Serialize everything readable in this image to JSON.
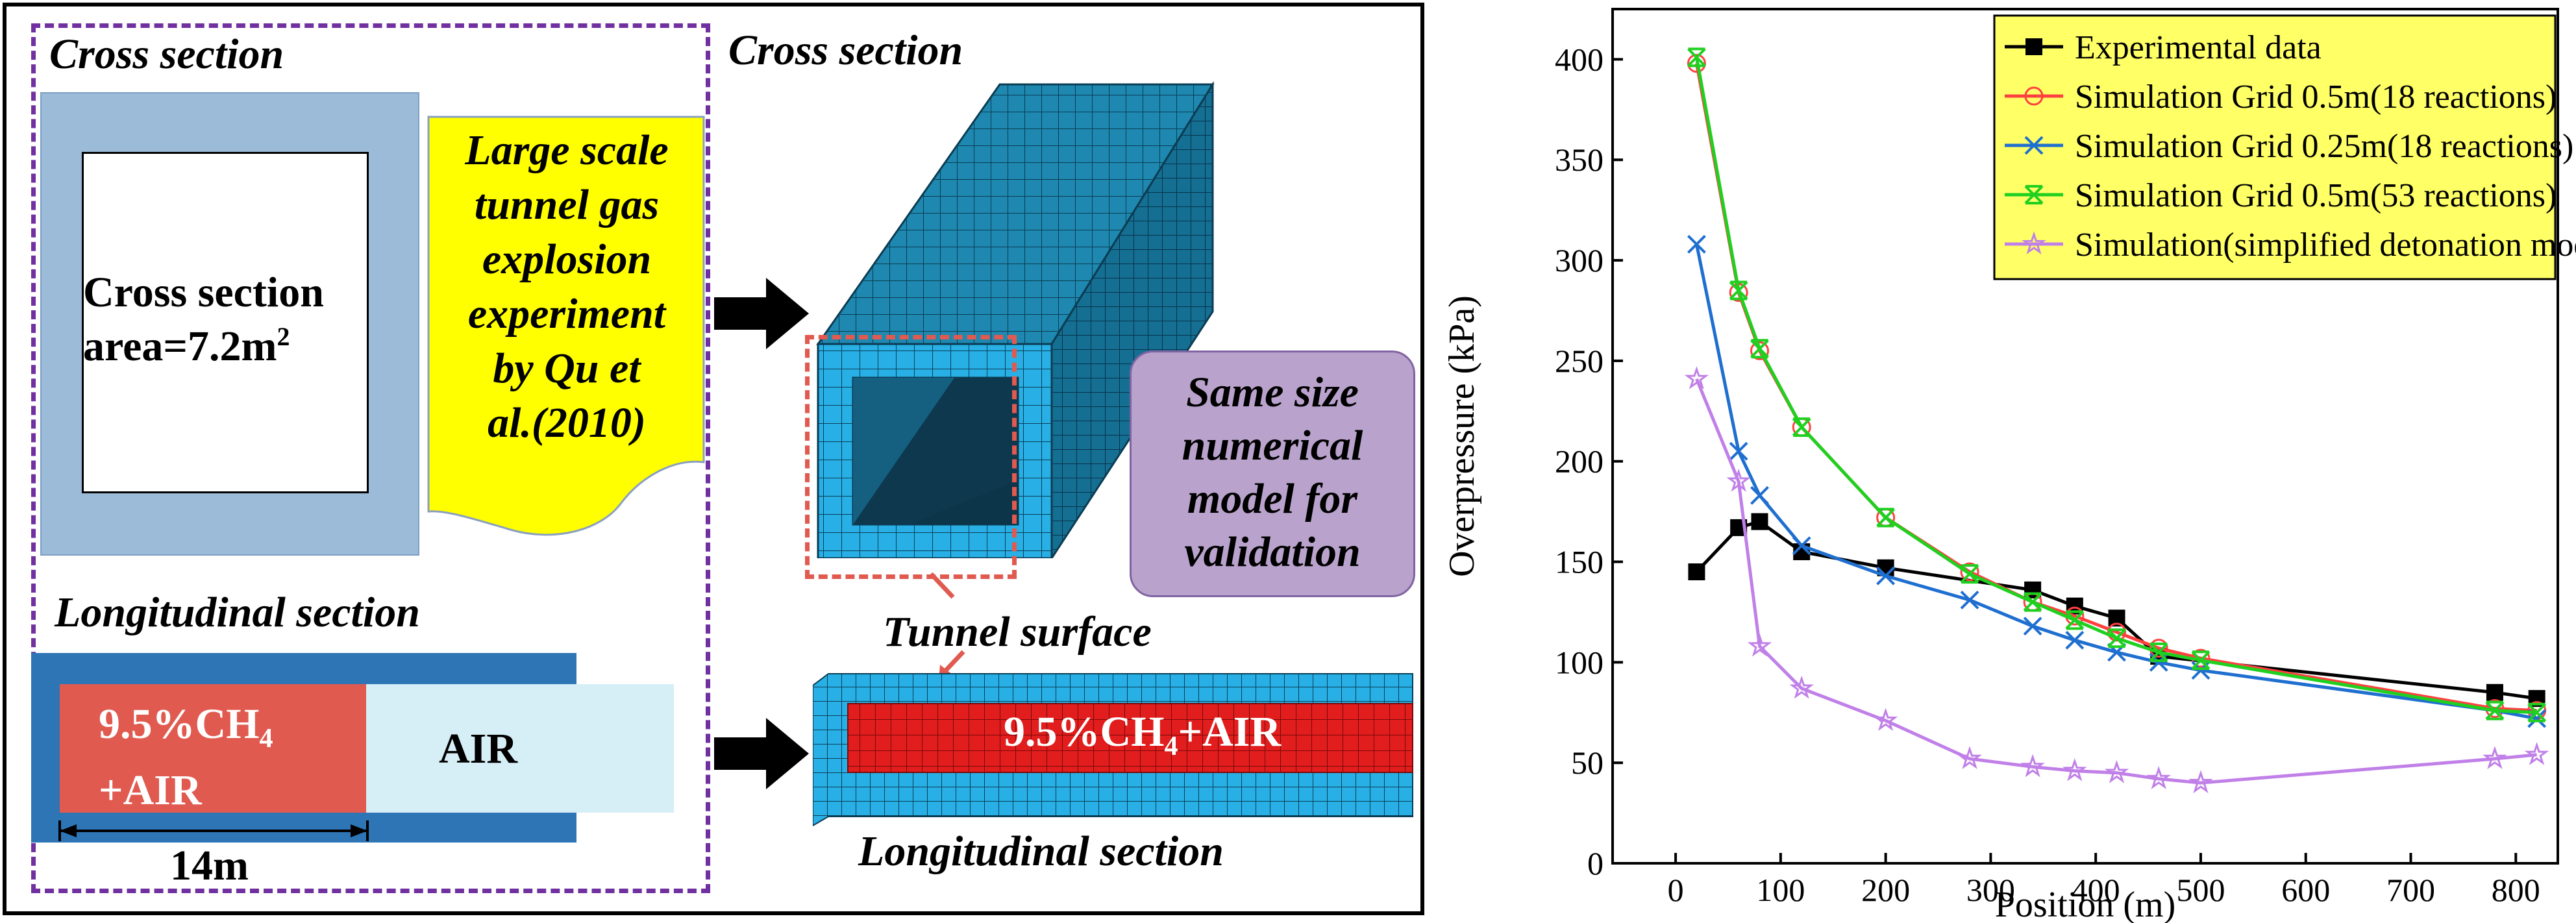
{
  "left_panel": {
    "cross_section_label": "Cross section",
    "cross_section_text_line1": "Cross section",
    "cross_section_text_line2_prefix": "area=7.2m",
    "cross_section_text_sup": "2",
    "callout_lines": [
      "Large scale",
      "tunnel gas",
      "explosion",
      "experiment",
      "by Qu et",
      "al.(2010)"
    ],
    "longitudinal_label": "Longitudinal section",
    "mixture_line1_prefix": "9.5%CH",
    "mixture_sub": "4",
    "mixture_line2": "+AIR",
    "air_label": "AIR",
    "length_label": "14m"
  },
  "middle_panel": {
    "cross_section_label": "Cross section",
    "model_box_lines": [
      "Same size",
      "numerical",
      "model for",
      "validation"
    ],
    "tunnel_surface_label": "Tunnel surface",
    "mixture_prefix": "9.5%CH",
    "mixture_sub": "4",
    "mixture_suffix": "+AIR",
    "longitudinal_label": "Longitudinal section"
  },
  "colors": {
    "dashed_frame": "#7030a0",
    "tunnel_blue": "#1b9fd4",
    "tunnel_dark": "#1a6f8f",
    "gas_red": "#e02020",
    "callout_yellow": "#ffff00",
    "purple_box": "#b9a3cc",
    "light_blue_fill": "#9bbbd9",
    "air_fill": "#d6eef5",
    "mix_fill": "#e05a50"
  },
  "chart_data": {
    "type": "line",
    "xlabel": "Position (m)",
    "ylabel": "Overpressure (kPa)",
    "xlim": [
      -60,
      840
    ],
    "ylim": [
      0,
      425
    ],
    "xticks": [
      0,
      100,
      200,
      300,
      400,
      500,
      600,
      700,
      800
    ],
    "yticks": [
      0,
      50,
      100,
      150,
      200,
      250,
      300,
      350,
      400
    ],
    "legend_position": "top-right",
    "series": [
      {
        "name": "Experimental data",
        "color": "#000000",
        "marker": "square",
        "x": [
          20,
          60,
          80,
          120,
          200,
          340,
          380,
          420,
          460,
          780,
          820
        ],
        "y": [
          145,
          167,
          170,
          155,
          147,
          136,
          128,
          122,
          103,
          85,
          82
        ]
      },
      {
        "name": "Simulation Grid 0.5m(18 reactions)",
        "color": "#ff4040",
        "marker": "circle",
        "x": [
          20,
          60,
          80,
          120,
          200,
          280,
          340,
          380,
          420,
          460,
          500,
          780,
          820
        ],
        "y": [
          398,
          284,
          255,
          217,
          172,
          145,
          130,
          123,
          115,
          107,
          102,
          77,
          76
        ]
      },
      {
        "name": "Simulation Grid 0.25m(18 reactions)",
        "color": "#1f6fd0",
        "marker": "x",
        "x": [
          20,
          60,
          80,
          120,
          200,
          280,
          340,
          380,
          420,
          460,
          500,
          780,
          820
        ],
        "y": [
          308,
          205,
          183,
          158,
          143,
          131,
          118,
          111,
          105,
          100,
          96,
          76,
          72
        ]
      },
      {
        "name": "Simulation Grid 0.5m(53 reactions)",
        "color": "#20d020",
        "marker": "xbox",
        "x": [
          20,
          60,
          80,
          120,
          200,
          280,
          340,
          380,
          420,
          460,
          500,
          780,
          820
        ],
        "y": [
          401,
          285,
          256,
          217,
          172,
          144,
          130,
          121,
          112,
          105,
          101,
          76,
          75
        ]
      },
      {
        "name": "Simulation(simplified detonation model)",
        "color": "#c080e8",
        "marker": "star",
        "x": [
          20,
          60,
          80,
          120,
          200,
          280,
          340,
          380,
          420,
          460,
          500,
          780,
          820
        ],
        "y": [
          241,
          190,
          108,
          87,
          71,
          52,
          48,
          46,
          45,
          42,
          40,
          52,
          54
        ]
      }
    ]
  }
}
